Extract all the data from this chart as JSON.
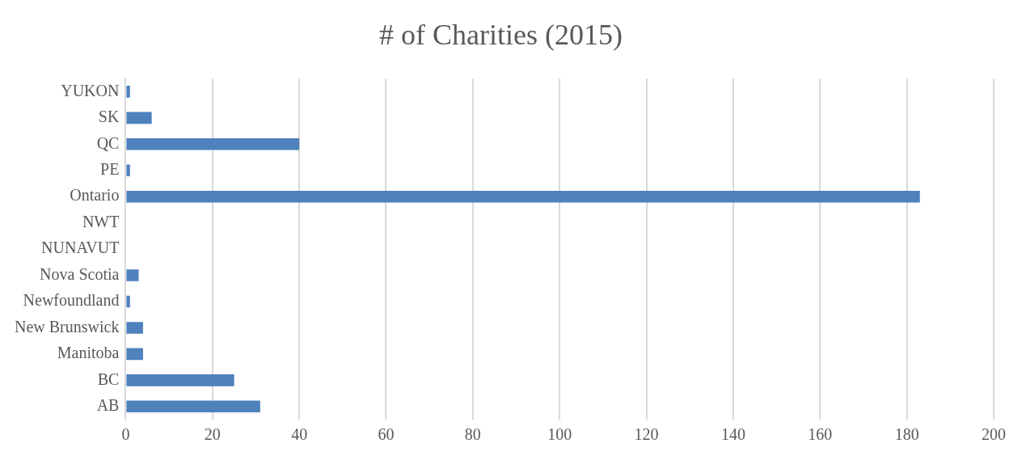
{
  "chart_data": {
    "type": "bar",
    "orientation": "horizontal",
    "title": "# of Charities (2015)",
    "categories": [
      "YUKON",
      "SK",
      "QC",
      "PE",
      "Ontario",
      "NWT",
      "NUNAVUT",
      "Nova Scotia",
      "Newfoundland",
      "New Brunswick",
      "Manitoba",
      "BC",
      "AB"
    ],
    "values": [
      1,
      6,
      40,
      1,
      183,
      0,
      0,
      3,
      1,
      4,
      4,
      25,
      31
    ],
    "color": "#4f81bd",
    "xlim": [
      0,
      200
    ],
    "xticks": [
      0,
      20,
      40,
      60,
      80,
      100,
      120,
      140,
      160,
      180,
      200
    ],
    "grid": "x",
    "legend": false
  }
}
